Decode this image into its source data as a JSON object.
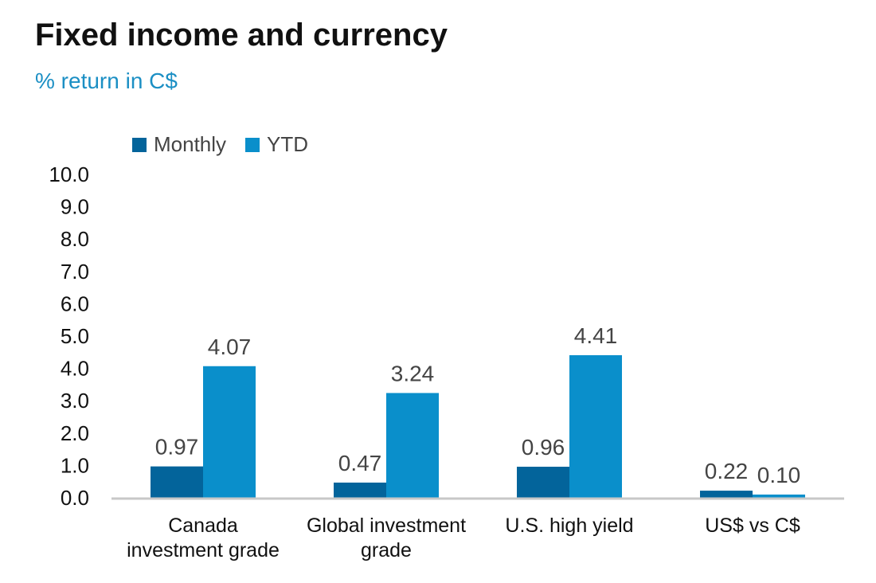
{
  "chart_data": {
    "type": "bar",
    "title": "Fixed income and currency",
    "subtitle": "% return in C$",
    "categories": [
      [
        "Canada",
        "investment grade"
      ],
      [
        "Global investment",
        "grade"
      ],
      [
        "U.S. high yield"
      ],
      [
        "US$ vs C$"
      ]
    ],
    "series": [
      {
        "name": "Monthly",
        "color": "#03649b",
        "values": [
          0.97,
          0.47,
          0.96,
          0.22
        ],
        "labels": [
          "0.97",
          "0.47",
          "0.96",
          "0.22"
        ]
      },
      {
        "name": "YTD",
        "color": "#0a8fcb",
        "values": [
          4.07,
          3.24,
          4.41,
          0.1
        ],
        "labels": [
          "4.07",
          "3.24",
          "4.41",
          "0.10"
        ]
      }
    ],
    "ylim": [
      0,
      10
    ],
    "yticks": [
      "0.0",
      "1.0",
      "2.0",
      "3.0",
      "4.0",
      "5.0",
      "6.0",
      "7.0",
      "8.0",
      "9.0",
      "10.0"
    ],
    "xlabel": "",
    "ylabel": "",
    "legend_position": "top-left",
    "grid": false
  }
}
